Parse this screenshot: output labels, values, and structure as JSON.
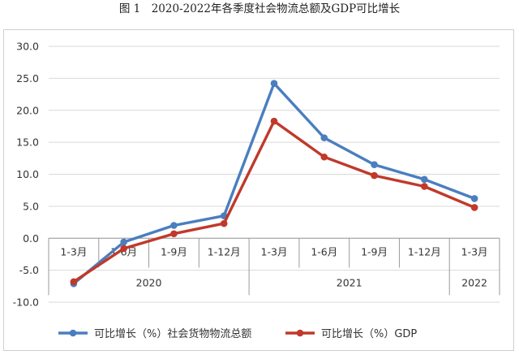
{
  "title": "图 1　2020-2022年各季度社会物流总额及GDP可比增长",
  "chart_data": {
    "type": "line",
    "categories": [
      "1-3月",
      "1-6月",
      "1-9月",
      "1-12月",
      "1-3月",
      "1-6月",
      "1-9月",
      "1-12月",
      "1-3月"
    ],
    "groups": [
      {
        "label": "2020",
        "span": [
          0,
          3
        ]
      },
      {
        "label": "2021",
        "span": [
          4,
          7
        ]
      },
      {
        "label": "2022",
        "span": [
          8,
          8
        ]
      }
    ],
    "ylim": [
      -10,
      30
    ],
    "yticks": [
      -10,
      -5,
      0,
      5,
      10,
      15,
      20,
      25,
      30
    ],
    "ytick_labels": [
      "-10.0",
      "-5.0",
      "0.0",
      "5.0",
      "10.0",
      "15.0",
      "20.0",
      "25.0",
      "30.0"
    ],
    "grid": true,
    "legend_position": "bottom",
    "series": [
      {
        "name": "可比增长（%）社会货物物流总额",
        "color": "#4a7ebf",
        "values": [
          -7.1,
          -0.6,
          2.0,
          3.5,
          24.2,
          15.7,
          11.5,
          9.2,
          6.2
        ]
      },
      {
        "name": "可比增长（%）GDP",
        "color": "#c0392b",
        "values": [
          -6.8,
          -1.6,
          0.7,
          2.3,
          18.3,
          12.7,
          9.8,
          8.1,
          4.8
        ]
      }
    ]
  }
}
